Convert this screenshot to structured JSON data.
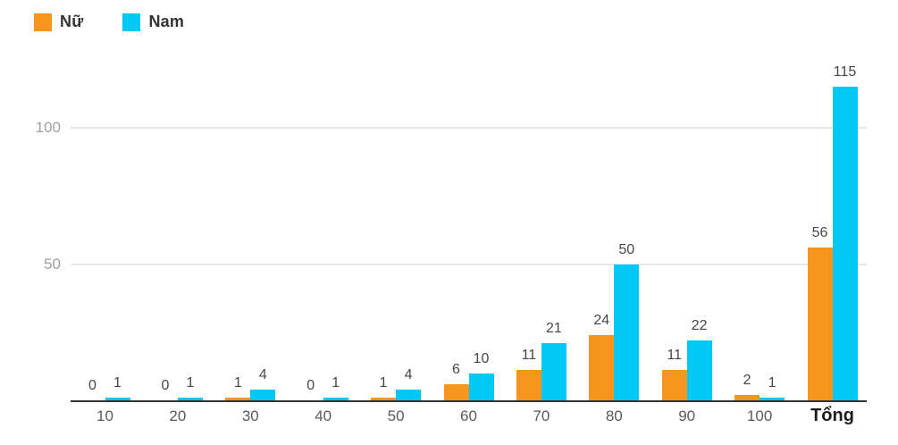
{
  "chart_data": {
    "type": "bar",
    "title": "",
    "categories": [
      "10",
      "20",
      "30",
      "40",
      "50",
      "60",
      "70",
      "80",
      "90",
      "100",
      "Tổng"
    ],
    "series": [
      {
        "name": "Nữ",
        "color": "#F7941D",
        "values": [
          0,
          0,
          1,
          0,
          1,
          6,
          11,
          24,
          11,
          2,
          56
        ]
      },
      {
        "name": "Nam",
        "color": "#00C9F8",
        "values": [
          1,
          1,
          4,
          1,
          4,
          10,
          21,
          50,
          22,
          1,
          115
        ]
      }
    ],
    "y_ticks": [
      50,
      100
    ],
    "ylim": [
      0,
      131
    ],
    "grid": "horizontal-only",
    "legend_position": "top-left",
    "value_labels": true,
    "emphasized_category": "Tổng"
  },
  "colors": {
    "background": "#FFFFFF",
    "grid_line": "#E6E6E6",
    "axis_line": "#333333",
    "y_tick_label": "#9E9E9E",
    "x_tick_label": "#5A5A5A",
    "value_label": "#464646",
    "legend_text": "#333333"
  }
}
